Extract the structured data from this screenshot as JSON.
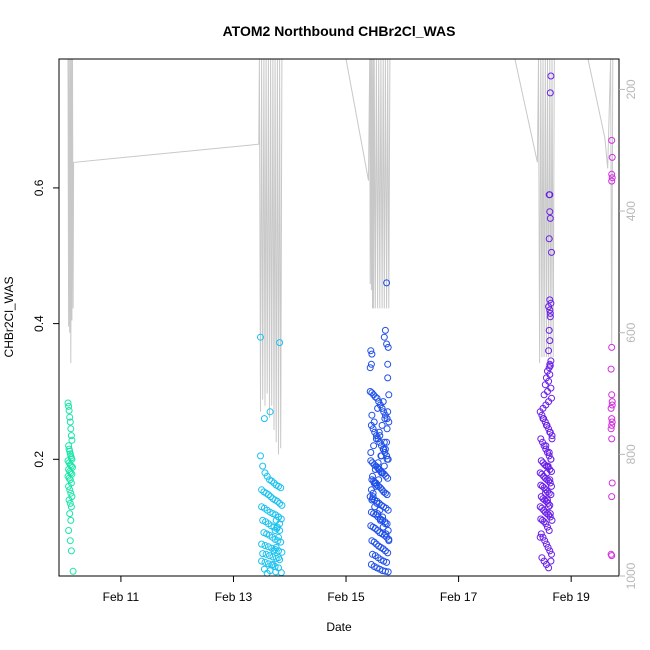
{
  "chart_data": {
    "type": "scatter",
    "title": "ATOM2 Northbound CHBr2Cl_WAS",
    "xlabel": "Date",
    "ylabel": "CHBr2Cl_WAS",
    "x_unit": "day of February 2017",
    "xlim": [
      9.9,
      19.85
    ],
    "ylim": [
      0.028,
      0.79
    ],
    "x_ticks": [
      11,
      13,
      15,
      17,
      19
    ],
    "x_tick_labels": [
      "Feb 11",
      "Feb 13",
      "Feb 15",
      "Feb 17",
      "Feb 19"
    ],
    "y_ticks": [
      0.2,
      0.4,
      0.6
    ],
    "y_tick_labels": [
      "0.2",
      "0.4",
      "0.6"
    ],
    "y2_note": "right axis (gray): altitude profile, reversed",
    "y2lim": [
      1000,
      150
    ],
    "y2_ticks": [
      200,
      400,
      600,
      800,
      1000
    ],
    "y2_tick_labels": [
      "200",
      "400",
      "600",
      "800",
      "1000"
    ],
    "grid": false,
    "legend": "none",
    "colors": {
      "altitude_line": "#c8c8c8",
      "flight1": "#19e6a8",
      "flight2": "#19c2f0",
      "flight3": "#1f4fe8",
      "flight4": "#6a1fe8",
      "flight5": "#d42ee0"
    },
    "series": [
      {
        "id": "flight1",
        "color": "#19e6a8",
        "x": [
          10.06,
          10.07,
          10.08,
          10.09,
          10.1,
          10.11,
          10.12,
          10.13,
          10.07,
          10.08,
          10.09,
          10.1,
          10.11,
          10.12,
          10.13,
          10.06,
          10.08,
          10.1,
          10.12,
          10.14,
          10.07,
          10.09,
          10.11,
          10.13,
          10.06,
          10.08,
          10.1,
          10.12,
          10.07,
          10.09,
          10.11,
          10.13,
          10.08,
          10.1,
          10.12,
          10.09,
          10.11,
          10.07,
          10.1,
          10.12,
          10.15
        ],
        "y": [
          0.283,
          0.278,
          0.272,
          0.262,
          0.255,
          0.245,
          0.235,
          0.228,
          0.22,
          0.215,
          0.212,
          0.208,
          0.205,
          0.202,
          0.2,
          0.198,
          0.195,
          0.192,
          0.19,
          0.188,
          0.185,
          0.182,
          0.18,
          0.178,
          0.175,
          0.172,
          0.17,
          0.165,
          0.16,
          0.155,
          0.15,
          0.145,
          0.14,
          0.135,
          0.13,
          0.12,
          0.11,
          0.095,
          0.08,
          0.065,
          0.035
        ]
      },
      {
        "id": "flight2",
        "color": "#19c2f0",
        "x": [
          13.48,
          13.52,
          13.56,
          13.6,
          13.64,
          13.68,
          13.72,
          13.76,
          13.8,
          13.84,
          13.5,
          13.54,
          13.58,
          13.62,
          13.66,
          13.7,
          13.74,
          13.78,
          13.82,
          13.86,
          13.5,
          13.55,
          13.6,
          13.65,
          13.7,
          13.75,
          13.8,
          13.85,
          13.52,
          13.57,
          13.62,
          13.67,
          13.72,
          13.77,
          13.82,
          13.54,
          13.59,
          13.64,
          13.69,
          13.74,
          13.79,
          13.84,
          13.5,
          13.56,
          13.62,
          13.68,
          13.74,
          13.8,
          13.86,
          13.52,
          13.58,
          13.64,
          13.7,
          13.76,
          13.82,
          13.5,
          13.56,
          13.62,
          13.68,
          13.74,
          13.8,
          13.55,
          13.65,
          13.75,
          13.85,
          13.6,
          13.7,
          13.8,
          13.72,
          13.76,
          13.8,
          13.74,
          13.78,
          13.82,
          13.76,
          13.8,
          13.55,
          13.65,
          13.48,
          13.82
        ],
        "y": [
          0.205,
          0.19,
          0.18,
          0.175,
          0.17,
          0.168,
          0.165,
          0.162,
          0.16,
          0.158,
          0.155,
          0.152,
          0.15,
          0.148,
          0.145,
          0.142,
          0.14,
          0.138,
          0.135,
          0.132,
          0.13,
          0.128,
          0.125,
          0.122,
          0.12,
          0.118,
          0.115,
          0.112,
          0.11,
          0.108,
          0.105,
          0.102,
          0.1,
          0.098,
          0.095,
          0.092,
          0.09,
          0.088,
          0.085,
          0.082,
          0.08,
          0.078,
          0.075,
          0.073,
          0.071,
          0.069,
          0.067,
          0.065,
          0.063,
          0.061,
          0.06,
          0.058,
          0.056,
          0.054,
          0.052,
          0.05,
          0.048,
          0.046,
          0.044,
          0.042,
          0.04,
          0.038,
          0.036,
          0.034,
          0.033,
          0.032,
          0.045,
          0.055,
          0.065,
          0.07,
          0.085,
          0.095,
          0.1,
          0.105,
          0.11,
          0.115,
          0.26,
          0.27,
          0.38,
          0.372
        ]
      },
      {
        "id": "flight3",
        "color": "#1f4fe8",
        "x": [
          15.43,
          15.46,
          15.49,
          15.52,
          15.55,
          15.58,
          15.61,
          15.64,
          15.67,
          15.7,
          15.73,
          15.76,
          15.45,
          15.48,
          15.51,
          15.54,
          15.57,
          15.6,
          15.63,
          15.66,
          15.69,
          15.72,
          15.75,
          15.44,
          15.47,
          15.5,
          15.53,
          15.56,
          15.59,
          15.62,
          15.65,
          15.68,
          15.71,
          15.74,
          15.46,
          15.49,
          15.52,
          15.55,
          15.58,
          15.61,
          15.64,
          15.67,
          15.7,
          15.73,
          15.43,
          15.47,
          15.51,
          15.55,
          15.59,
          15.63,
          15.67,
          15.71,
          15.75,
          15.45,
          15.49,
          15.53,
          15.57,
          15.61,
          15.65,
          15.69,
          15.73,
          15.44,
          15.48,
          15.52,
          15.56,
          15.6,
          15.64,
          15.68,
          15.72,
          15.76,
          15.46,
          15.5,
          15.54,
          15.58,
          15.62,
          15.66,
          15.7,
          15.74,
          15.47,
          15.52,
          15.57,
          15.62,
          15.67,
          15.72,
          15.45,
          15.5,
          15.55,
          15.6,
          15.65,
          15.7,
          15.75,
          15.48,
          15.53,
          15.58,
          15.63,
          15.68,
          15.73,
          15.44,
          15.49,
          15.54,
          15.59,
          15.64,
          15.69,
          15.74,
          15.46,
          15.51,
          15.56,
          15.61,
          15.66,
          15.71,
          15.76,
          15.47,
          15.52,
          15.57,
          15.62,
          15.67,
          15.72,
          15.45,
          15.5,
          15.55,
          15.6,
          15.65,
          15.7,
          15.75,
          15.48,
          15.53,
          15.58,
          15.63,
          15.68,
          15.73,
          15.46,
          15.56,
          15.66,
          15.76,
          15.5,
          15.6,
          15.7,
          15.72,
          15.7,
          15.68,
          15.72,
          15.74,
          15.75,
          15.44,
          15.45,
          15.46,
          15.43,
          15.74
        ],
        "y": [
          0.3,
          0.298,
          0.295,
          0.292,
          0.29,
          0.285,
          0.28,
          0.275,
          0.27,
          0.265,
          0.26,
          0.255,
          0.25,
          0.245,
          0.24,
          0.235,
          0.23,
          0.225,
          0.22,
          0.215,
          0.21,
          0.205,
          0.2,
          0.198,
          0.195,
          0.192,
          0.19,
          0.188,
          0.185,
          0.182,
          0.18,
          0.178,
          0.175,
          0.172,
          0.17,
          0.168,
          0.165,
          0.162,
          0.16,
          0.158,
          0.155,
          0.152,
          0.15,
          0.148,
          0.145,
          0.142,
          0.14,
          0.138,
          0.135,
          0.132,
          0.13,
          0.128,
          0.125,
          0.122,
          0.12,
          0.118,
          0.115,
          0.112,
          0.11,
          0.108,
          0.105,
          0.102,
          0.1,
          0.098,
          0.095,
          0.092,
          0.09,
          0.088,
          0.085,
          0.082,
          0.08,
          0.078,
          0.075,
          0.072,
          0.07,
          0.068,
          0.065,
          0.062,
          0.06,
          0.058,
          0.055,
          0.052,
          0.05,
          0.048,
          0.045,
          0.042,
          0.04,
          0.038,
          0.036,
          0.035,
          0.034,
          0.15,
          0.16,
          0.17,
          0.18,
          0.19,
          0.2,
          0.21,
          0.22,
          0.23,
          0.24,
          0.25,
          0.26,
          0.27,
          0.14,
          0.13,
          0.12,
          0.11,
          0.1,
          0.09,
          0.08,
          0.175,
          0.185,
          0.195,
          0.205,
          0.215,
          0.225,
          0.155,
          0.165,
          0.135,
          0.125,
          0.115,
          0.105,
          0.095,
          0.145,
          0.165,
          0.185,
          0.205,
          0.225,
          0.245,
          0.265,
          0.275,
          0.285,
          0.295,
          0.255,
          0.235,
          0.215,
          0.46,
          0.39,
          0.38,
          0.37,
          0.34,
          0.365,
          0.36,
          0.34,
          0.355,
          0.335,
          0.32
        ]
      },
      {
        "id": "flight4",
        "color": "#6a1fe8",
        "x": [
          18.45,
          18.48,
          18.51,
          18.54,
          18.57,
          18.6,
          18.63,
          18.66,
          18.46,
          18.49,
          18.52,
          18.55,
          18.58,
          18.61,
          18.64,
          18.47,
          18.5,
          18.53,
          18.56,
          18.59,
          18.62,
          18.65,
          18.45,
          18.48,
          18.51,
          18.54,
          18.57,
          18.6,
          18.63,
          18.46,
          18.49,
          18.52,
          18.55,
          18.58,
          18.61,
          18.64,
          18.47,
          18.5,
          18.53,
          18.56,
          18.59,
          18.62,
          18.45,
          18.48,
          18.51,
          18.54,
          18.57,
          18.6,
          18.63,
          18.46,
          18.49,
          18.52,
          18.55,
          18.58,
          18.61,
          18.47,
          18.5,
          18.53,
          18.56,
          18.59,
          18.62,
          18.65,
          18.48,
          18.52,
          18.56,
          18.6,
          18.64,
          18.5,
          18.55,
          18.6,
          18.65,
          18.52,
          18.58,
          18.64,
          18.54,
          18.6,
          18.56,
          18.62,
          18.58,
          18.61,
          18.63,
          18.62,
          18.64,
          18.6,
          18.62,
          18.61,
          18.63,
          18.62,
          18.64,
          18.62,
          18.6,
          18.63,
          18.5,
          18.56,
          18.62,
          18.66,
          18.55,
          18.61,
          18.64,
          18.59,
          18.57,
          18.62,
          18.65,
          18.54,
          18.58,
          18.6,
          18.63,
          18.66,
          18.45,
          18.65,
          18.61,
          18.63,
          18.62
        ],
        "y": [
          0.27,
          0.265,
          0.26,
          0.255,
          0.25,
          0.245,
          0.24,
          0.235,
          0.23,
          0.225,
          0.22,
          0.215,
          0.21,
          0.205,
          0.2,
          0.198,
          0.195,
          0.192,
          0.19,
          0.188,
          0.185,
          0.182,
          0.18,
          0.178,
          0.175,
          0.172,
          0.17,
          0.168,
          0.165,
          0.162,
          0.16,
          0.158,
          0.155,
          0.152,
          0.15,
          0.148,
          0.145,
          0.142,
          0.14,
          0.138,
          0.135,
          0.132,
          0.13,
          0.128,
          0.125,
          0.122,
          0.12,
          0.118,
          0.115,
          0.112,
          0.11,
          0.108,
          0.105,
          0.1,
          0.095,
          0.09,
          0.085,
          0.08,
          0.075,
          0.07,
          0.065,
          0.06,
          0.055,
          0.05,
          0.045,
          0.04,
          0.05,
          0.275,
          0.28,
          0.285,
          0.29,
          0.295,
          0.3,
          0.305,
          0.31,
          0.315,
          0.32,
          0.325,
          0.33,
          0.335,
          0.338,
          0.34,
          0.345,
          0.36,
          0.375,
          0.39,
          0.41,
          0.42,
          0.43,
          0.435,
          0.425,
          0.415,
          0.26,
          0.25,
          0.24,
          0.23,
          0.22,
          0.21,
          0.2,
          0.19,
          0.18,
          0.17,
          0.16,
          0.15,
          0.14,
          0.13,
          0.12,
          0.11,
          0.085,
          0.505,
          0.525,
          0.555,
          0.59
        ],
        "y_high": [
          [
            18.63,
            0.74
          ],
          [
            18.64,
            0.765
          ],
          [
            18.62,
            0.565
          ],
          [
            18.61,
            0.59
          ]
        ]
      },
      {
        "id": "flight5",
        "color": "#d42ee0",
        "x": [
          19.72,
          19.73,
          19.72,
          19.73,
          19.72,
          19.71,
          19.72,
          19.73,
          19.71,
          19.72,
          19.73,
          19.72,
          19.71,
          19.72,
          19.73,
          19.72,
          19.71,
          19.72,
          19.72,
          19.73
        ],
        "y": [
          0.67,
          0.645,
          0.62,
          0.615,
          0.365,
          0.333,
          0.295,
          0.285,
          0.275,
          0.26,
          0.255,
          0.25,
          0.245,
          0.23,
          0.165,
          0.145,
          0.06,
          0.058,
          0.61,
          0.28
        ]
      }
    ],
    "altitude_profile": {
      "note": "gray line, x in days, altitude on reversed right axis",
      "x": [
        10.0,
        10.02,
        10.03,
        10.04,
        10.05,
        10.06,
        10.07,
        10.08,
        10.09,
        10.1,
        10.11,
        10.12,
        10.13,
        10.14,
        10.15,
        10.16,
        13.45,
        13.46,
        13.48,
        13.5,
        13.52,
        13.54,
        13.56,
        13.58,
        13.6,
        13.62,
        13.64,
        13.66,
        13.68,
        13.7,
        13.72,
        13.74,
        13.76,
        13.78,
        13.8,
        13.82,
        13.84,
        13.86,
        13.88,
        14.2,
        14.6,
        15.0,
        15.4,
        15.42,
        15.43,
        15.44,
        15.45,
        15.46,
        15.47,
        15.48,
        15.49,
        15.5,
        15.52,
        15.54,
        15.56,
        15.58,
        15.6,
        15.62,
        15.64,
        15.66,
        15.68,
        15.7,
        15.72,
        15.74,
        15.76,
        15.78,
        16.2,
        16.8,
        17.4,
        18.0,
        18.4,
        18.42,
        18.44,
        18.46,
        18.48,
        18.5,
        18.52,
        18.54,
        18.56,
        18.58,
        18.6,
        18.62,
        18.64,
        18.66,
        18.68,
        18.7,
        19.0,
        19.3,
        19.6,
        19.65,
        19.7,
        19.72,
        19.74,
        19.76
      ],
      "alt": [
        150,
        150,
        150,
        150,
        150,
        150,
        590,
        150,
        600,
        150,
        650,
        150,
        580,
        150,
        560,
        320,
        290,
        150,
        730,
        150,
        710,
        150,
        720,
        150,
        700,
        150,
        740,
        150,
        720,
        150,
        760,
        150,
        780,
        150,
        800,
        150,
        790,
        150,
        150,
        150,
        150,
        150,
        350,
        150,
        520,
        150,
        530,
        150,
        560,
        150,
        560,
        150,
        560,
        150,
        560,
        150,
        560,
        150,
        560,
        150,
        560,
        150,
        560,
        150,
        560,
        150,
        150,
        150,
        150,
        150,
        320,
        150,
        650,
        150,
        640,
        150,
        640,
        150,
        640,
        150,
        640,
        150,
        640,
        150,
        640,
        150,
        150,
        150,
        280,
        330,
        150,
        620,
        150,
        150
      ]
    }
  }
}
